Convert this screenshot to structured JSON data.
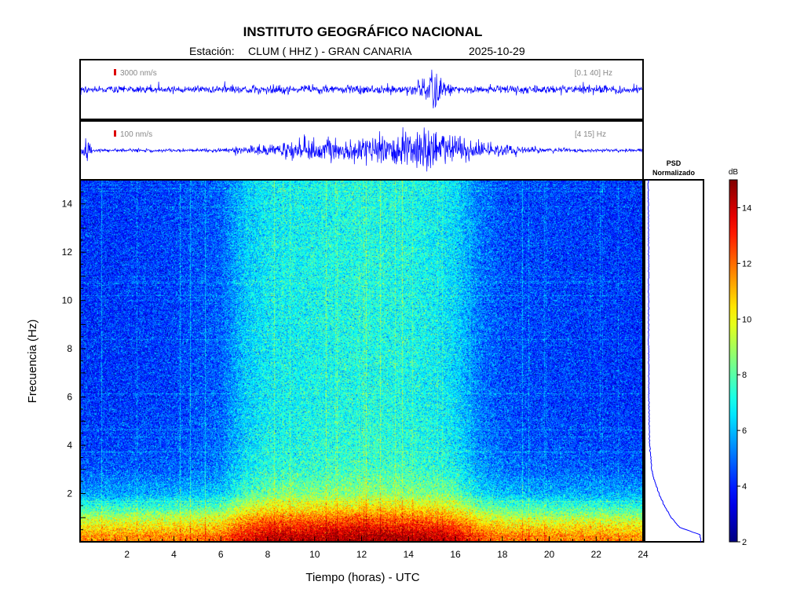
{
  "header": {
    "title": "INSTITUTO GEOGRÁFICO NACIONAL",
    "station_label": "Estación:",
    "station": "CLUM ( HHZ ) - GRAN CANARIA",
    "date": "2025-10-29"
  },
  "colors": {
    "trace": "#0000ff",
    "scale_mark": "#dd0000",
    "frame": "#000000",
    "muted_text": "#888888"
  },
  "chart_data": [
    {
      "type": "line",
      "name": "waveform-broadband",
      "scale_label": "3000 nm/s",
      "band_label": "[0.1 40] Hz",
      "x": [
        0,
        2,
        4,
        6,
        8,
        10,
        12,
        14,
        14.8,
        15.1,
        15.4,
        16,
        18,
        20,
        22,
        24
      ],
      "amplitude_envelope": [
        0.12,
        0.12,
        0.12,
        0.12,
        0.13,
        0.13,
        0.13,
        0.14,
        0.35,
        0.55,
        0.3,
        0.13,
        0.12,
        0.12,
        0.12,
        0.12
      ],
      "xlim": [
        0,
        24
      ]
    },
    {
      "type": "line",
      "name": "waveform-filtered",
      "scale_label": "100 nm/s",
      "band_label": "[4 15] Hz",
      "x": [
        0,
        0.3,
        0.5,
        2,
        4,
        6,
        7,
        8,
        9,
        10,
        11,
        12,
        13,
        14,
        14.7,
        15,
        15.3,
        16,
        17,
        18,
        19,
        20,
        22,
        24
      ],
      "amplitude_envelope": [
        0.05,
        0.7,
        0.05,
        0.05,
        0.05,
        0.06,
        0.12,
        0.2,
        0.28,
        0.35,
        0.4,
        0.45,
        0.5,
        0.55,
        0.75,
        0.95,
        0.6,
        0.4,
        0.3,
        0.18,
        0.1,
        0.07,
        0.05,
        0.05
      ],
      "xlim": [
        0,
        24
      ]
    },
    {
      "type": "heatmap",
      "name": "spectrogram",
      "xlabel": "Tiempo (horas) - UTC",
      "ylabel": "Frecuencia  (Hz)",
      "xlim": [
        0,
        24
      ],
      "ylim": [
        0,
        15
      ],
      "x_ticks": [
        2,
        4,
        6,
        8,
        10,
        12,
        14,
        16,
        18,
        20,
        22,
        24
      ],
      "y_ticks": [
        2,
        4,
        6,
        8,
        10,
        12,
        14
      ],
      "x_tick_labels": [
        "2",
        "4",
        "6",
        "8",
        "10",
        "12",
        "14",
        "16",
        "18",
        "20",
        "22",
        "24"
      ],
      "y_tick_labels": [
        "2",
        "4",
        "6",
        "8",
        "10",
        "12",
        "14"
      ],
      "time_profile_hours": [
        0,
        2,
        4,
        6,
        7,
        8,
        10,
        12,
        14,
        15,
        16,
        17,
        18,
        20,
        22,
        24
      ],
      "time_profile_db": [
        4.2,
        4.3,
        4.4,
        4.8,
        6.2,
        6.8,
        7.0,
        7.2,
        7.1,
        6.9,
        6.5,
        5.2,
        4.6,
        4.4,
        4.3,
        4.2
      ],
      "freq_profile_hz": [
        0,
        0.3,
        0.8,
        1.5,
        2,
        3,
        4,
        6,
        10,
        15
      ],
      "freq_profile_extra_db": [
        7.5,
        7.0,
        5.5,
        3.0,
        1.5,
        0.5,
        0.2,
        0,
        0,
        0
      ]
    },
    {
      "type": "line",
      "name": "psd-normalizado",
      "title_line1": "PSD",
      "title_line2": "Normalizado",
      "freq_hz": [
        0,
        0.3,
        0.6,
        1.0,
        1.5,
        2.0,
        2.5,
        3.0,
        4.0,
        5.0,
        6.0,
        8.0,
        10.0,
        12.0,
        14.0,
        15.0
      ],
      "psd_norm": [
        1.0,
        0.97,
        0.6,
        0.45,
        0.32,
        0.22,
        0.14,
        0.09,
        0.05,
        0.04,
        0.035,
        0.03,
        0.03,
        0.03,
        0.025,
        0.025
      ],
      "ylim": [
        0,
        15
      ]
    },
    {
      "type": "colorbar",
      "name": "colorbar",
      "unit_label": "dB",
      "range": [
        2,
        15
      ],
      "ticks": [
        2,
        4,
        6,
        8,
        10,
        12,
        14
      ],
      "tick_labels": [
        "2",
        "4",
        "6",
        "8",
        "10",
        "12",
        "14"
      ]
    }
  ]
}
